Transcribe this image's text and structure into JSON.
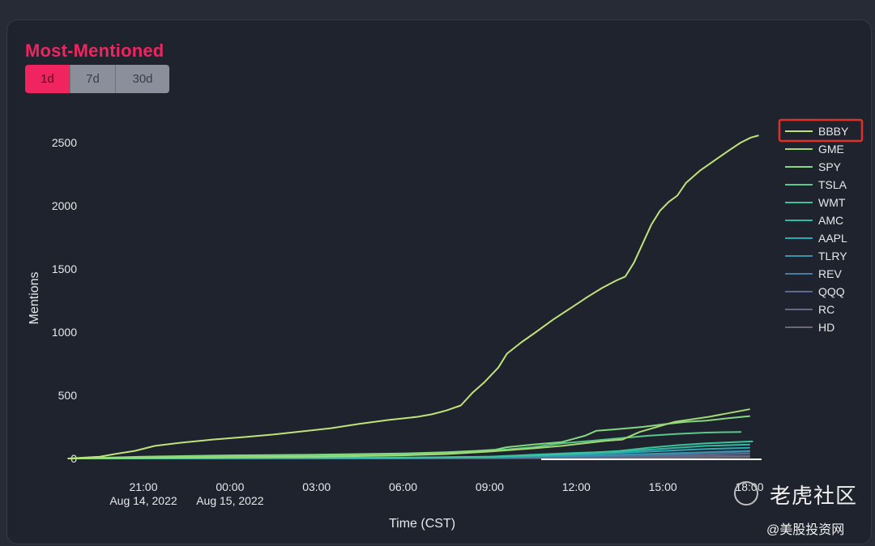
{
  "widget": {
    "title": "Most-Mentioned",
    "range_buttons": [
      {
        "label": "1d",
        "active": true
      },
      {
        "label": "7d",
        "active": false
      },
      {
        "label": "30d",
        "active": false
      }
    ]
  },
  "watermark": {
    "brand": "老虎社区",
    "handle": "@美股投资网"
  },
  "colors": {
    "background": "#1f232d",
    "title": "#f0245e",
    "highlight_box": "#e0302a"
  },
  "chart_data": {
    "type": "line",
    "title": "",
    "xlabel": "Time (CST)",
    "ylabel": "Mentions",
    "x_unit": "hours since 2022-08-14 00:00 CST",
    "xlim": [
      18.3,
      42.1
    ],
    "ylim": [
      0,
      2650
    ],
    "yticks": [
      0,
      500,
      1000,
      1500,
      2000,
      2500
    ],
    "xticks": [
      {
        "hour": 21,
        "label": "21:00",
        "sublabel": "Aug 14, 2022"
      },
      {
        "hour": 24,
        "label": "00:00",
        "sublabel": "Aug 15, 2022"
      },
      {
        "hour": 27,
        "label": "03:00",
        "sublabel": ""
      },
      {
        "hour": 30,
        "label": "06:00",
        "sublabel": ""
      },
      {
        "hour": 33,
        "label": "09:00",
        "sublabel": ""
      },
      {
        "hour": 36,
        "label": "12:00",
        "sublabel": ""
      },
      {
        "hour": 39,
        "label": "15:00",
        "sublabel": ""
      },
      {
        "hour": 42,
        "label": "18:00",
        "sublabel": ""
      }
    ],
    "grid": false,
    "legend": "right",
    "highlighted_series": "BBBY",
    "series": [
      {
        "name": "BBBY",
        "color": "#bfe37a",
        "points": [
          [
            18.4,
            0
          ],
          [
            19.5,
            15
          ],
          [
            20,
            35
          ],
          [
            20.7,
            60
          ],
          [
            21.4,
            100
          ],
          [
            22.3,
            125
          ],
          [
            23.4,
            150
          ],
          [
            24.5,
            170
          ],
          [
            25.5,
            190
          ],
          [
            26.5,
            215
          ],
          [
            27.5,
            240
          ],
          [
            28.5,
            275
          ],
          [
            29.5,
            305
          ],
          [
            30.5,
            330
          ],
          [
            31,
            350
          ],
          [
            31.5,
            380
          ],
          [
            32,
            420
          ],
          [
            32.4,
            520
          ],
          [
            32.8,
            600
          ],
          [
            33.3,
            720
          ],
          [
            33.6,
            830
          ],
          [
            34.1,
            920
          ],
          [
            34.6,
            1000
          ],
          [
            35.2,
            1100
          ],
          [
            35.8,
            1190
          ],
          [
            36.4,
            1280
          ],
          [
            36.9,
            1350
          ],
          [
            37.4,
            1410
          ],
          [
            37.7,
            1440
          ],
          [
            38,
            1550
          ],
          [
            38.3,
            1700
          ],
          [
            38.6,
            1850
          ],
          [
            38.9,
            1960
          ],
          [
            39.2,
            2030
          ],
          [
            39.5,
            2080
          ],
          [
            39.8,
            2180
          ],
          [
            40.3,
            2280
          ],
          [
            40.8,
            2360
          ],
          [
            41.3,
            2440
          ],
          [
            41.7,
            2500
          ],
          [
            42.05,
            2540
          ],
          [
            42.3,
            2555
          ]
        ]
      },
      {
        "name": "GME",
        "color": "#a3d873",
        "points": [
          [
            18.4,
            0
          ],
          [
            21,
            5
          ],
          [
            24,
            10
          ],
          [
            27,
            15
          ],
          [
            30,
            25
          ],
          [
            31.5,
            35
          ],
          [
            33,
            55
          ],
          [
            34.5,
            80
          ],
          [
            35.5,
            100
          ],
          [
            37,
            140
          ],
          [
            37.6,
            150
          ],
          [
            38.2,
            210
          ],
          [
            38.8,
            250
          ],
          [
            39.4,
            290
          ],
          [
            40,
            310
          ],
          [
            40.6,
            330
          ],
          [
            41.3,
            360
          ],
          [
            42,
            390
          ]
        ]
      },
      {
        "name": "SPY",
        "color": "#84d87f",
        "points": [
          [
            18.4,
            0
          ],
          [
            21,
            15
          ],
          [
            24,
            25
          ],
          [
            27,
            30
          ],
          [
            30,
            40
          ],
          [
            31.5,
            50
          ],
          [
            32.5,
            60
          ],
          [
            33.2,
            70
          ],
          [
            33.6,
            90
          ],
          [
            34.5,
            110
          ],
          [
            35.5,
            130
          ],
          [
            36.3,
            180
          ],
          [
            36.7,
            220
          ],
          [
            37.3,
            230
          ],
          [
            38.3,
            250
          ],
          [
            39,
            270
          ],
          [
            39.8,
            290
          ],
          [
            40.5,
            300
          ],
          [
            41.3,
            320
          ],
          [
            42,
            335
          ]
        ]
      },
      {
        "name": "TSLA",
        "color": "#58c98a",
        "points": [
          [
            18.4,
            0
          ],
          [
            21,
            10
          ],
          [
            24,
            15
          ],
          [
            27,
            20
          ],
          [
            30,
            30
          ],
          [
            31.5,
            40
          ],
          [
            32.5,
            50
          ],
          [
            33.5,
            70
          ],
          [
            34.5,
            90
          ],
          [
            35.5,
            120
          ],
          [
            36.5,
            140
          ],
          [
            37.5,
            160
          ],
          [
            38.5,
            180
          ],
          [
            39.5,
            195
          ],
          [
            40.5,
            205
          ],
          [
            41.7,
            210
          ]
        ]
      },
      {
        "name": "WMT",
        "color": "#3fc29a",
        "points": [
          [
            18.4,
            0
          ],
          [
            24,
            4
          ],
          [
            30,
            8
          ],
          [
            33,
            15
          ],
          [
            34.5,
            25
          ],
          [
            36,
            40
          ],
          [
            37.5,
            60
          ],
          [
            38.5,
            85
          ],
          [
            39.5,
            105
          ],
          [
            40.5,
            120
          ],
          [
            41.5,
            130
          ],
          [
            42.1,
            135
          ]
        ]
      },
      {
        "name": "AMC",
        "color": "#2fb8a6",
        "points": [
          [
            18.4,
            0
          ],
          [
            24,
            3
          ],
          [
            30,
            6
          ],
          [
            33,
            15
          ],
          [
            34.5,
            30
          ],
          [
            36,
            45
          ],
          [
            37.5,
            55
          ],
          [
            38.5,
            70
          ],
          [
            39.5,
            85
          ],
          [
            40.5,
            100
          ],
          [
            42,
            110
          ]
        ]
      },
      {
        "name": "AAPL",
        "color": "#2aa9b5",
        "points": [
          [
            18.4,
            0
          ],
          [
            24,
            2
          ],
          [
            30,
            5
          ],
          [
            33,
            10
          ],
          [
            34.5,
            20
          ],
          [
            36,
            30
          ],
          [
            37.5,
            45
          ],
          [
            39,
            60
          ],
          [
            40.5,
            75
          ],
          [
            42,
            85
          ]
        ]
      },
      {
        "name": "TLRY",
        "color": "#3a92ad",
        "points": [
          [
            18.4,
            0
          ],
          [
            24,
            2
          ],
          [
            30,
            4
          ],
          [
            33,
            8
          ],
          [
            34.5,
            14
          ],
          [
            36,
            20
          ],
          [
            37.5,
            30
          ],
          [
            39,
            40
          ],
          [
            40.5,
            50
          ],
          [
            42,
            60
          ]
        ]
      },
      {
        "name": "REV",
        "color": "#4a7b9f",
        "points": [
          [
            18.4,
            0
          ],
          [
            24,
            1
          ],
          [
            30,
            2
          ],
          [
            33,
            4
          ],
          [
            35,
            8
          ],
          [
            37,
            18
          ],
          [
            39,
            30
          ],
          [
            40.5,
            45
          ],
          [
            42,
            55
          ]
        ]
      },
      {
        "name": "QQQ",
        "color": "#5b6a8e",
        "points": [
          [
            18.4,
            0
          ],
          [
            24,
            1
          ],
          [
            30,
            3
          ],
          [
            33,
            5
          ],
          [
            35,
            8
          ],
          [
            37,
            15
          ],
          [
            39,
            22
          ],
          [
            40.5,
            30
          ],
          [
            42,
            40
          ]
        ]
      },
      {
        "name": "RC",
        "color": "#666782",
        "points": [
          [
            18.4,
            0
          ],
          [
            24,
            1
          ],
          [
            30,
            2
          ],
          [
            33,
            3
          ],
          [
            35,
            5
          ],
          [
            37,
            10
          ],
          [
            39,
            15
          ],
          [
            42,
            22
          ]
        ]
      },
      {
        "name": "HD",
        "color": "#6d6775",
        "points": [
          [
            18.4,
            0
          ],
          [
            24,
            1
          ],
          [
            30,
            1
          ],
          [
            33,
            2
          ],
          [
            36,
            4
          ],
          [
            39,
            6
          ],
          [
            42,
            10
          ]
        ]
      }
    ]
  }
}
